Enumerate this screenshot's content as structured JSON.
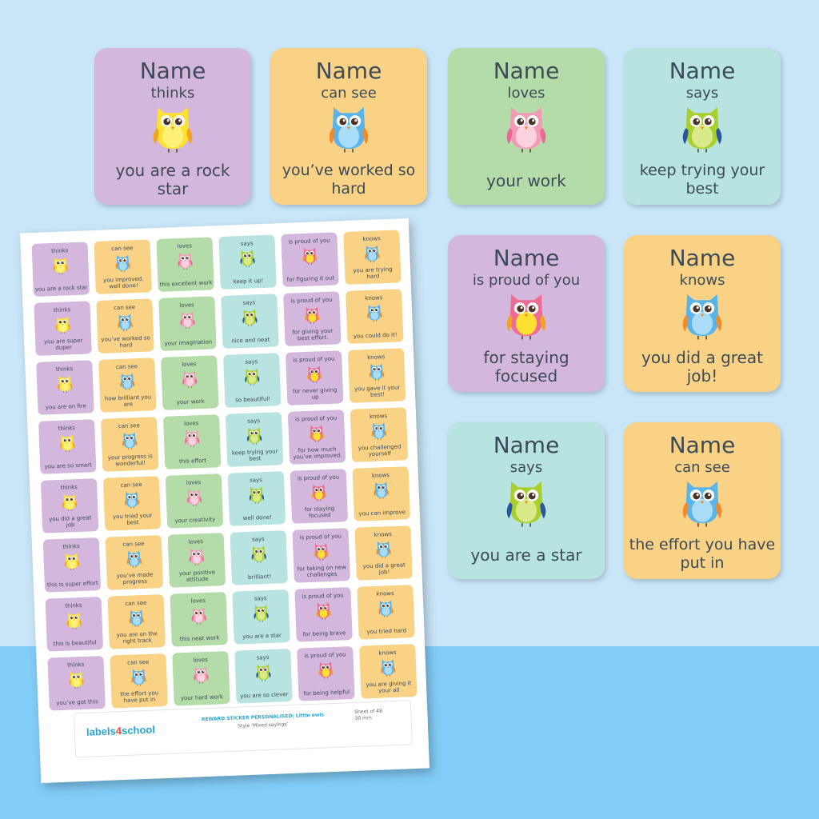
{
  "colors": {
    "purple": "#d4b7dd",
    "orange": "#fad285",
    "green": "#b3dca8",
    "teal": "#b7e3e0"
  },
  "big_stickers": [
    {
      "name": "Name",
      "verb": "thinks",
      "phrase": "you are a rock star",
      "color": "purple",
      "owl": "yellow"
    },
    {
      "name": "Name",
      "verb": "can see",
      "phrase": "you’ve worked so hard",
      "color": "orange",
      "owl": "blue"
    },
    {
      "name": "Name",
      "verb": "loves",
      "phrase": "your work",
      "color": "green",
      "owl": "pink"
    },
    {
      "name": "Name",
      "verb": "says",
      "phrase": "keep trying your best",
      "color": "teal",
      "owl": "lime"
    },
    {
      "name": "Name",
      "verb": "is proud of you",
      "phrase": "for staying focused",
      "color": "purple",
      "owl": "pinkyellow"
    },
    {
      "name": "Name",
      "verb": "knows",
      "phrase": "you did a great job!",
      "color": "orange",
      "owl": "blue"
    },
    {
      "name": "Name",
      "verb": "says",
      "phrase": "you are a star",
      "color": "teal",
      "owl": "lime"
    },
    {
      "name": "Name",
      "verb": "can see",
      "phrase": "the effort you have put in",
      "color": "orange",
      "owl": "blue"
    }
  ],
  "sheet": {
    "rows": [
      [
        "you are a rock star",
        "you improved. well done!",
        "this excellent work",
        "keep it up!",
        "for figuring it out",
        "you are trying hard"
      ],
      [
        "you are super duper",
        "you’ve worked so hard",
        "your imagination",
        "nice and neat",
        "for giving your best effort.",
        "you could do it!"
      ],
      [
        "you are on fire",
        "how brilliant you are",
        "your work",
        "so beautiful!",
        "for never giving up",
        "you gave it your best!"
      ],
      [
        "you are so smart",
        "your progress is wonderful!",
        "this effort",
        "keep trying your best",
        "for how much you’ve improved.",
        "you challenged yourself"
      ],
      [
        "you did a great job",
        "you tried your best",
        "your creativity",
        "well done!",
        "for staying focused",
        "you can improve"
      ],
      [
        "this is super effort",
        "you’ve made progress",
        "your positive attitude",
        "brilliant!",
        "for taking on new challenges",
        "you did a great job!"
      ],
      [
        "this is beautiful",
        "you are on the right track",
        "this neat work",
        "you are a star",
        "for being brave",
        "you tried hard"
      ],
      [
        "you’ve got this",
        "the effort you have put in",
        "your hard work",
        "you are so clever",
        "for being helpful",
        "you are giving it your all"
      ]
    ],
    "verbs": [
      "thinks",
      "can see",
      "loves",
      "says",
      "is proud of you",
      "knows"
    ],
    "footer": {
      "logo_a": "labels",
      "logo_b": "4",
      "logo_c": "school",
      "title": "REWARD STICKER PERSONALISED: Little owls",
      "style": "Style ‘Mixed sayings’",
      "sheet_of": "Sheet of 48",
      "size": "30 mm"
    }
  }
}
